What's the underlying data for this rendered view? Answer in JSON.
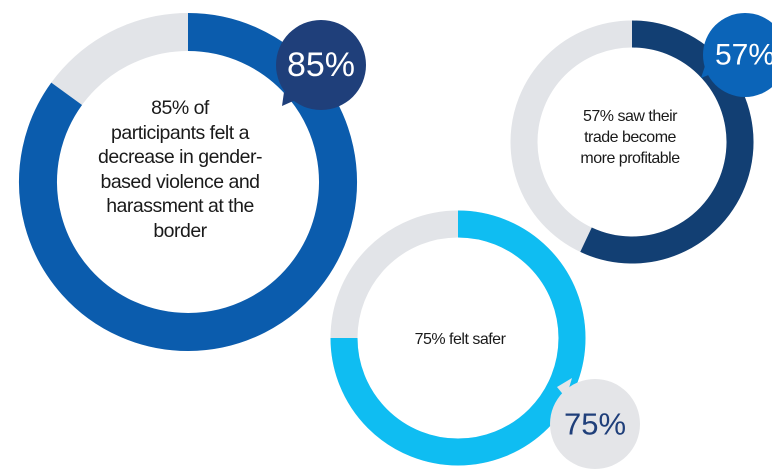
{
  "chart_data": [
    {
      "type": "pie",
      "variant": "donut",
      "value": 85,
      "unit": "%",
      "badge_label": "85%",
      "center_text": [
        "85% of",
        "participants felt a",
        "decrease in gender-",
        "based violence and",
        "harassment at the",
        "border"
      ],
      "colors": {
        "arc": "#0b5cad",
        "track": "#e2e4e8",
        "badge": "#1f3f7a",
        "badge_text": "#ffffff"
      }
    },
    {
      "type": "pie",
      "variant": "donut",
      "value": 57,
      "unit": "%",
      "badge_label": "57%",
      "center_text": [
        "57% saw their",
        "trade become",
        "more profitable"
      ],
      "colors": {
        "arc": "#123f73",
        "track": "#e2e4e8",
        "badge": "#0b64b8",
        "badge_text": "#ffffff"
      }
    },
    {
      "type": "pie",
      "variant": "donut",
      "value": 75,
      "unit": "%",
      "badge_label": "75%",
      "center_text": [
        "75% felt safer"
      ],
      "colors": {
        "arc": "#0fbdf2",
        "track": "#e2e4e8",
        "badge": "#e4e5e8",
        "badge_text": "#1f3f7a"
      }
    }
  ]
}
